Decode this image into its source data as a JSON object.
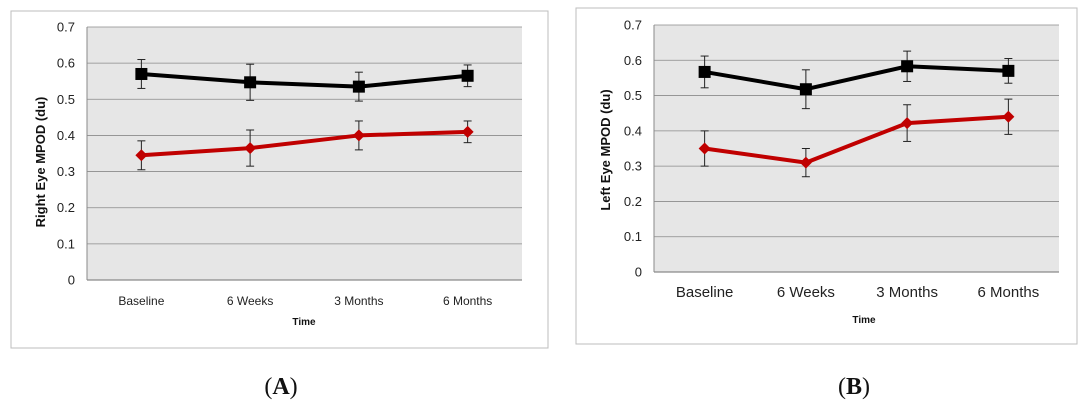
{
  "chart_data": [
    {
      "type": "line",
      "panel": "A",
      "categories": [
        "Baseline",
        "6 Weeks",
        "3 Months",
        "6 Months"
      ],
      "series": [
        {
          "values": [
            0.57,
            0.547,
            0.535,
            0.565
          ],
          "error": [
            0.04,
            0.05,
            0.04,
            0.03
          ],
          "color": "#000000",
          "marker": "square"
        },
        {
          "values": [
            0.345,
            0.365,
            0.4,
            0.41
          ],
          "error": [
            0.04,
            0.05,
            0.04,
            0.03
          ],
          "color": "#c00000",
          "marker": "diamond"
        }
      ],
      "yticks": [
        "0",
        "0.1",
        "0.2",
        "0.3",
        "0.4",
        "0.5",
        "0.6",
        "0.7"
      ],
      "ylim": [
        0,
        0.7
      ],
      "xlabel": "Time",
      "ylabel": "Right Eye MPOD (du)",
      "grid": true
    },
    {
      "type": "line",
      "panel": "B",
      "categories": [
        "Baseline",
        "6 Weeks",
        "3 Months",
        "6 Months"
      ],
      "series": [
        {
          "values": [
            0.567,
            0.518,
            0.583,
            0.57
          ],
          "error": [
            0.045,
            0.055,
            0.043,
            0.035
          ],
          "color": "#000000",
          "marker": "square"
        },
        {
          "values": [
            0.35,
            0.31,
            0.422,
            0.44
          ],
          "error": [
            0.05,
            0.04,
            0.052,
            0.05
          ],
          "color": "#c00000",
          "marker": "diamond"
        }
      ],
      "yticks": [
        "0",
        "0.1",
        "0.2",
        "0.3",
        "0.4",
        "0.5",
        "0.6",
        "0.7"
      ],
      "ylim": [
        0,
        0.7
      ],
      "xlabel": "Time",
      "ylabel": "Left Eye MPOD (du)",
      "grid": true
    }
  ],
  "labels": {
    "a": "A",
    "b": "B"
  }
}
